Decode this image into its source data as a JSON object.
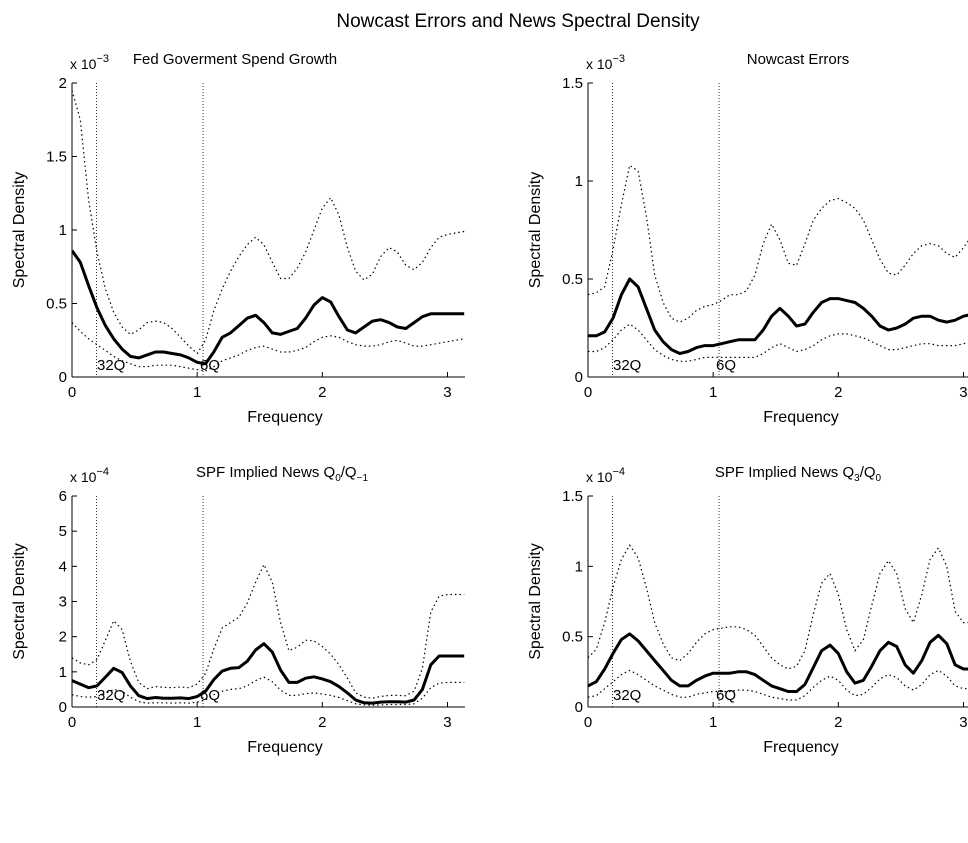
{
  "figure": {
    "title": "Nowcast Errors and News Spectral Density",
    "colors": {
      "estimate": "#000000",
      "bands": "#000000",
      "marker_lines": "#000000",
      "marker_labels": "#2e8b8b",
      "background": "#ffffff"
    }
  },
  "chart_data": [
    {
      "type": "line",
      "title": "Fed Goverment Spend Growth",
      "title_parts": [],
      "xlabel": "Frequency",
      "ylabel": "Spectral Density",
      "xlim": [
        0,
        3.14
      ],
      "ylim": [
        0,
        2
      ],
      "xticks": [
        "0",
        "1",
        "2",
        "3"
      ],
      "yticks": [
        "0",
        "0.5",
        "1",
        "1.5",
        "2"
      ],
      "multiplier": "x 10",
      "multiplier_exp": "−3",
      "markers": [
        {
          "x": 0.196,
          "label": "32Q"
        },
        {
          "x": 1.047,
          "label": "6Q"
        }
      ],
      "x": [
        0,
        0.0667,
        0.1333,
        0.2,
        0.2667,
        0.3333,
        0.4,
        0.4667,
        0.5333,
        0.6,
        0.6667,
        0.7333,
        0.8,
        0.8667,
        0.9333,
        1.0,
        1.0667,
        1.1333,
        1.2,
        1.2667,
        1.3333,
        1.4,
        1.4667,
        1.5333,
        1.6,
        1.6667,
        1.7333,
        1.8,
        1.8667,
        1.9333,
        2.0,
        2.0667,
        2.1333,
        2.2,
        2.2667,
        2.3333,
        2.4,
        2.4667,
        2.5333,
        2.6,
        2.6667,
        2.7333,
        2.8,
        2.8667,
        2.9333,
        3.0,
        3.0667,
        3.1333
      ],
      "series": [
        {
          "role": "estimate",
          "values": [
            0.86,
            0.78,
            0.62,
            0.47,
            0.35,
            0.26,
            0.19,
            0.14,
            0.13,
            0.15,
            0.17,
            0.17,
            0.16,
            0.15,
            0.13,
            0.1,
            0.09,
            0.17,
            0.27,
            0.3,
            0.35,
            0.4,
            0.42,
            0.37,
            0.3,
            0.29,
            0.31,
            0.33,
            0.4,
            0.49,
            0.54,
            0.51,
            0.41,
            0.32,
            0.3,
            0.34,
            0.38,
            0.39,
            0.37,
            0.34,
            0.33,
            0.37,
            0.41,
            0.43,
            0.43,
            0.43,
            0.43,
            0.43
          ]
        },
        {
          "role": "upper",
          "values": [
            1.95,
            1.75,
            1.2,
            0.85,
            0.6,
            0.44,
            0.34,
            0.29,
            0.32,
            0.37,
            0.38,
            0.37,
            0.33,
            0.27,
            0.21,
            0.16,
            0.25,
            0.45,
            0.6,
            0.72,
            0.82,
            0.9,
            0.95,
            0.9,
            0.78,
            0.67,
            0.67,
            0.74,
            0.85,
            1.0,
            1.15,
            1.22,
            1.1,
            0.88,
            0.72,
            0.66,
            0.7,
            0.82,
            0.88,
            0.85,
            0.76,
            0.73,
            0.78,
            0.88,
            0.95,
            0.97,
            0.98,
            0.99
          ]
        },
        {
          "role": "lower",
          "values": [
            0.37,
            0.31,
            0.26,
            0.22,
            0.18,
            0.14,
            0.11,
            0.09,
            0.07,
            0.07,
            0.08,
            0.08,
            0.08,
            0.07,
            0.06,
            0.05,
            0.04,
            0.07,
            0.11,
            0.13,
            0.15,
            0.18,
            0.2,
            0.21,
            0.19,
            0.17,
            0.17,
            0.18,
            0.2,
            0.24,
            0.27,
            0.28,
            0.27,
            0.24,
            0.22,
            0.21,
            0.21,
            0.22,
            0.24,
            0.25,
            0.23,
            0.21,
            0.21,
            0.22,
            0.23,
            0.24,
            0.25,
            0.26
          ]
        }
      ]
    },
    {
      "type": "line",
      "title": "Nowcast Errors",
      "title_parts": [],
      "xlabel": "Frequency",
      "ylabel": "Spectral Density",
      "xlim": [
        0,
        3.14
      ],
      "ylim": [
        0,
        1.5
      ],
      "xticks": [
        "0",
        "1",
        "2",
        "3"
      ],
      "yticks": [
        "0",
        "0.5",
        "1",
        "1.5"
      ],
      "multiplier": "x 10",
      "multiplier_exp": "−3",
      "markers": [
        {
          "x": 0.196,
          "label": "32Q"
        },
        {
          "x": 1.047,
          "label": "6Q"
        }
      ],
      "x": [
        0,
        0.0667,
        0.1333,
        0.2,
        0.2667,
        0.3333,
        0.4,
        0.4667,
        0.5333,
        0.6,
        0.6667,
        0.7333,
        0.8,
        0.8667,
        0.9333,
        1.0,
        1.0667,
        1.1333,
        1.2,
        1.2667,
        1.3333,
        1.4,
        1.4667,
        1.5333,
        1.6,
        1.6667,
        1.7333,
        1.8,
        1.8667,
        1.9333,
        2.0,
        2.0667,
        2.1333,
        2.2,
        2.2667,
        2.3333,
        2.4,
        2.4667,
        2.5333,
        2.6,
        2.6667,
        2.7333,
        2.8,
        2.8667,
        2.9333,
        3.0,
        3.0667,
        3.1333
      ],
      "series": [
        {
          "role": "estimate",
          "values": [
            0.21,
            0.21,
            0.23,
            0.3,
            0.42,
            0.5,
            0.46,
            0.35,
            0.24,
            0.18,
            0.14,
            0.12,
            0.13,
            0.15,
            0.16,
            0.16,
            0.17,
            0.18,
            0.19,
            0.19,
            0.19,
            0.24,
            0.31,
            0.35,
            0.31,
            0.26,
            0.27,
            0.33,
            0.38,
            0.4,
            0.4,
            0.39,
            0.38,
            0.35,
            0.31,
            0.26,
            0.24,
            0.25,
            0.27,
            0.3,
            0.31,
            0.31,
            0.29,
            0.28,
            0.29,
            0.31,
            0.32,
            0.34
          ]
        },
        {
          "role": "upper",
          "values": [
            0.42,
            0.43,
            0.46,
            0.65,
            0.88,
            1.08,
            1.05,
            0.82,
            0.52,
            0.38,
            0.3,
            0.28,
            0.3,
            0.34,
            0.36,
            0.37,
            0.39,
            0.42,
            0.42,
            0.44,
            0.52,
            0.68,
            0.78,
            0.7,
            0.58,
            0.57,
            0.68,
            0.8,
            0.86,
            0.9,
            0.91,
            0.89,
            0.86,
            0.8,
            0.7,
            0.6,
            0.53,
            0.52,
            0.57,
            0.63,
            0.67,
            0.68,
            0.67,
            0.63,
            0.61,
            0.66,
            0.72,
            0.75
          ]
        },
        {
          "role": "lower",
          "values": [
            0.13,
            0.13,
            0.15,
            0.19,
            0.24,
            0.27,
            0.24,
            0.19,
            0.14,
            0.11,
            0.09,
            0.08,
            0.08,
            0.09,
            0.1,
            0.1,
            0.1,
            0.1,
            0.1,
            0.1,
            0.1,
            0.12,
            0.15,
            0.17,
            0.15,
            0.13,
            0.14,
            0.16,
            0.19,
            0.21,
            0.22,
            0.22,
            0.21,
            0.2,
            0.18,
            0.16,
            0.14,
            0.14,
            0.15,
            0.16,
            0.17,
            0.17,
            0.16,
            0.16,
            0.16,
            0.17,
            0.18,
            0.19
          ]
        }
      ]
    },
    {
      "type": "line",
      "title": "",
      "title_parts": [
        {
          "text": "SPF Implied News Q",
          "shift": "base"
        },
        {
          "text": "0",
          "shift": "sub"
        },
        {
          "text": "/Q",
          "shift": "base"
        },
        {
          "text": "−1",
          "shift": "sub"
        }
      ],
      "xlabel": "Frequency",
      "ylabel": "Spectral Density",
      "xlim": [
        0,
        3.14
      ],
      "ylim": [
        0,
        6
      ],
      "xticks": [
        "0",
        "1",
        "2",
        "3"
      ],
      "yticks": [
        "0",
        "1",
        "2",
        "3",
        "4",
        "5",
        "6"
      ],
      "multiplier": "x 10",
      "multiplier_exp": "−4",
      "markers": [
        {
          "x": 0.196,
          "label": "32Q"
        },
        {
          "x": 1.047,
          "label": "6Q"
        }
      ],
      "x": [
        0,
        0.0667,
        0.1333,
        0.2,
        0.2667,
        0.3333,
        0.4,
        0.4667,
        0.5333,
        0.6,
        0.6667,
        0.7333,
        0.8,
        0.8667,
        0.9333,
        1.0,
        1.0667,
        1.1333,
        1.2,
        1.2667,
        1.3333,
        1.4,
        1.4667,
        1.5333,
        1.6,
        1.6667,
        1.7333,
        1.8,
        1.8667,
        1.9333,
        2.0,
        2.0667,
        2.1333,
        2.2,
        2.2667,
        2.3333,
        2.4,
        2.4667,
        2.5333,
        2.6,
        2.6667,
        2.7333,
        2.8,
        2.8667,
        2.9333,
        3.0,
        3.0667,
        3.1333
      ],
      "series": [
        {
          "role": "estimate",
          "values": [
            0.75,
            0.65,
            0.55,
            0.6,
            0.85,
            1.1,
            0.98,
            0.6,
            0.32,
            0.24,
            0.27,
            0.25,
            0.25,
            0.26,
            0.24,
            0.3,
            0.45,
            0.78,
            1.02,
            1.1,
            1.12,
            1.3,
            1.62,
            1.8,
            1.56,
            1.05,
            0.7,
            0.7,
            0.82,
            0.86,
            0.8,
            0.72,
            0.58,
            0.4,
            0.2,
            0.12,
            0.11,
            0.14,
            0.15,
            0.15,
            0.14,
            0.2,
            0.5,
            1.2,
            1.45,
            1.45,
            1.45,
            1.45
          ]
        },
        {
          "role": "upper",
          "values": [
            1.4,
            1.25,
            1.2,
            1.35,
            1.9,
            2.45,
            2.2,
            1.3,
            0.7,
            0.52,
            0.58,
            0.56,
            0.55,
            0.57,
            0.55,
            0.65,
            0.95,
            1.65,
            2.25,
            2.4,
            2.55,
            2.95,
            3.55,
            4.05,
            3.55,
            2.4,
            1.6,
            1.7,
            1.9,
            1.88,
            1.72,
            1.5,
            1.2,
            0.82,
            0.4,
            0.28,
            0.25,
            0.3,
            0.33,
            0.33,
            0.32,
            0.45,
            1.1,
            2.7,
            3.15,
            3.2,
            3.2,
            3.2
          ]
        },
        {
          "role": "lower",
          "values": [
            0.35,
            0.3,
            0.28,
            0.3,
            0.38,
            0.5,
            0.45,
            0.28,
            0.15,
            0.11,
            0.12,
            0.12,
            0.11,
            0.12,
            0.11,
            0.14,
            0.2,
            0.35,
            0.45,
            0.5,
            0.52,
            0.6,
            0.75,
            0.85,
            0.72,
            0.48,
            0.33,
            0.33,
            0.38,
            0.4,
            0.37,
            0.33,
            0.27,
            0.18,
            0.09,
            0.06,
            0.05,
            0.06,
            0.07,
            0.07,
            0.07,
            0.09,
            0.25,
            0.55,
            0.68,
            0.7,
            0.7,
            0.7
          ]
        }
      ]
    },
    {
      "type": "line",
      "title": "",
      "title_parts": [
        {
          "text": "SPF Implied News Q",
          "shift": "base"
        },
        {
          "text": "3",
          "shift": "sub"
        },
        {
          "text": "/Q",
          "shift": "base"
        },
        {
          "text": "0",
          "shift": "sub"
        }
      ],
      "xlabel": "Frequency",
      "ylabel": "Spectral Density",
      "xlim": [
        0,
        3.14
      ],
      "ylim": [
        0,
        1.5
      ],
      "xticks": [
        "0",
        "1",
        "2",
        "3"
      ],
      "yticks": [
        "0",
        "0.5",
        "1",
        "1.5"
      ],
      "multiplier": "x 10",
      "multiplier_exp": "−4",
      "markers": [
        {
          "x": 0.196,
          "label": "32Q"
        },
        {
          "x": 1.047,
          "label": "6Q"
        }
      ],
      "x": [
        0,
        0.0667,
        0.1333,
        0.2,
        0.2667,
        0.3333,
        0.4,
        0.4667,
        0.5333,
        0.6,
        0.6667,
        0.7333,
        0.8,
        0.8667,
        0.9333,
        1.0,
        1.0667,
        1.1333,
        1.2,
        1.2667,
        1.3333,
        1.4,
        1.4667,
        1.5333,
        1.6,
        1.6667,
        1.7333,
        1.8,
        1.8667,
        1.9333,
        2.0,
        2.0667,
        2.1333,
        2.2,
        2.2667,
        2.3333,
        2.4,
        2.4667,
        2.5333,
        2.6,
        2.6667,
        2.7333,
        2.8,
        2.8667,
        2.9333,
        3.0,
        3.0667,
        3.1333
      ],
      "series": [
        {
          "role": "estimate",
          "values": [
            0.15,
            0.18,
            0.27,
            0.38,
            0.48,
            0.52,
            0.47,
            0.4,
            0.33,
            0.26,
            0.19,
            0.15,
            0.15,
            0.19,
            0.22,
            0.24,
            0.24,
            0.24,
            0.25,
            0.25,
            0.23,
            0.19,
            0.15,
            0.13,
            0.11,
            0.11,
            0.16,
            0.28,
            0.4,
            0.44,
            0.38,
            0.25,
            0.17,
            0.19,
            0.29,
            0.4,
            0.46,
            0.43,
            0.3,
            0.24,
            0.33,
            0.46,
            0.51,
            0.45,
            0.3,
            0.27,
            0.27,
            0.27
          ]
        },
        {
          "role": "upper",
          "values": [
            0.35,
            0.41,
            0.6,
            0.85,
            1.05,
            1.15,
            1.06,
            0.85,
            0.6,
            0.45,
            0.35,
            0.33,
            0.38,
            0.46,
            0.52,
            0.55,
            0.56,
            0.57,
            0.57,
            0.55,
            0.51,
            0.43,
            0.35,
            0.3,
            0.27,
            0.29,
            0.4,
            0.66,
            0.88,
            0.95,
            0.8,
            0.55,
            0.4,
            0.48,
            0.72,
            0.95,
            1.04,
            0.95,
            0.7,
            0.6,
            0.8,
            1.05,
            1.13,
            1.0,
            0.68,
            0.6,
            0.6,
            0.6
          ]
        },
        {
          "role": "lower",
          "values": [
            0.07,
            0.08,
            0.13,
            0.18,
            0.23,
            0.26,
            0.23,
            0.19,
            0.15,
            0.12,
            0.09,
            0.07,
            0.07,
            0.09,
            0.1,
            0.11,
            0.11,
            0.11,
            0.12,
            0.12,
            0.11,
            0.09,
            0.07,
            0.06,
            0.05,
            0.05,
            0.08,
            0.14,
            0.19,
            0.22,
            0.19,
            0.12,
            0.08,
            0.09,
            0.14,
            0.2,
            0.23,
            0.21,
            0.15,
            0.12,
            0.16,
            0.23,
            0.26,
            0.22,
            0.15,
            0.13,
            0.13,
            0.13
          ]
        }
      ]
    }
  ]
}
